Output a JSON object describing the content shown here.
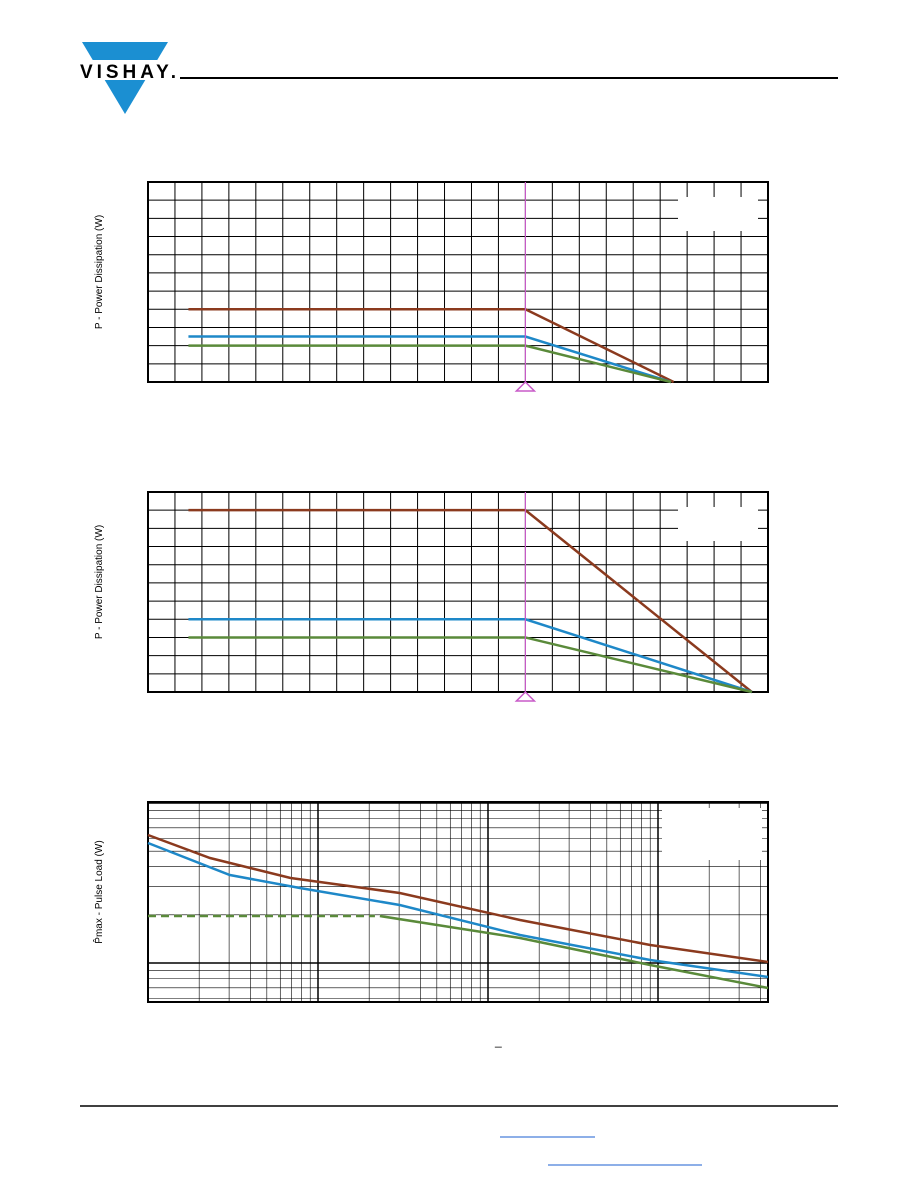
{
  "header": {
    "logo": "VISHAY."
  },
  "charts": [
    {
      "type": "line",
      "y_label": "P - Power Dissipation (W)",
      "xlim": [
        0,
        23
      ],
      "ylim": [
        0,
        11
      ],
      "grid": true,
      "marker_x": 14,
      "marker_color": "#c85ac8",
      "series": [
        {
          "color": "#8b3a1e",
          "x": [
            1.5,
            14,
            19.5
          ],
          "values": [
            4,
            4,
            0
          ]
        },
        {
          "color": "#1e88c8",
          "x": [
            1.5,
            14,
            19.4
          ],
          "values": [
            2.5,
            2.5,
            0
          ]
        },
        {
          "color": "#5a8a3a",
          "x": [
            1.5,
            14,
            19.4
          ],
          "values": [
            2,
            2,
            0
          ]
        }
      ]
    },
    {
      "type": "line",
      "y_label": "P - Power Dissipation (W)",
      "xlim": [
        0,
        23
      ],
      "ylim": [
        0,
        11
      ],
      "grid": true,
      "marker_x": 14,
      "marker_color": "#c85ac8",
      "series": [
        {
          "color": "#8b3a1e",
          "x": [
            1.5,
            14,
            22.4
          ],
          "values": [
            10,
            10,
            0
          ]
        },
        {
          "color": "#1e88c8",
          "x": [
            1.5,
            14,
            22.4
          ],
          "values": [
            4,
            4,
            0
          ]
        },
        {
          "color": "#5a8a3a",
          "x": [
            1.5,
            14,
            22.4
          ],
          "values": [
            3,
            3,
            0
          ]
        }
      ]
    },
    {
      "type": "line",
      "y_label": "P̂max - Pulse Load  (W)",
      "xlim": [
        0,
        10
      ],
      "ylim": [
        0,
        10
      ],
      "log_grid": true,
      "series": [
        {
          "color": "#8b3a1e",
          "x": [
            0,
            1,
            2.3,
            4.06,
            6,
            8.1,
            10
          ],
          "values": [
            8.35,
            7.2,
            6.2,
            5.45,
            4.1,
            2.85,
            2
          ]
        },
        {
          "color": "#1e88c8",
          "x": [
            0,
            1.32,
            2.45,
            4.06,
            6,
            8.1,
            10
          ],
          "values": [
            7.95,
            6.35,
            5.7,
            4.85,
            3.35,
            2.1,
            1.25
          ]
        },
        {
          "color": "#5a8a3a",
          "dashed": true,
          "x": [
            0,
            3.66
          ],
          "values": [
            4.3,
            4.3
          ]
        },
        {
          "color": "#5a8a3a",
          "x": [
            3.74,
            6,
            8.1,
            10
          ],
          "values": [
            4.3,
            3.2,
            1.85,
            0.7
          ]
        }
      ]
    }
  ]
}
